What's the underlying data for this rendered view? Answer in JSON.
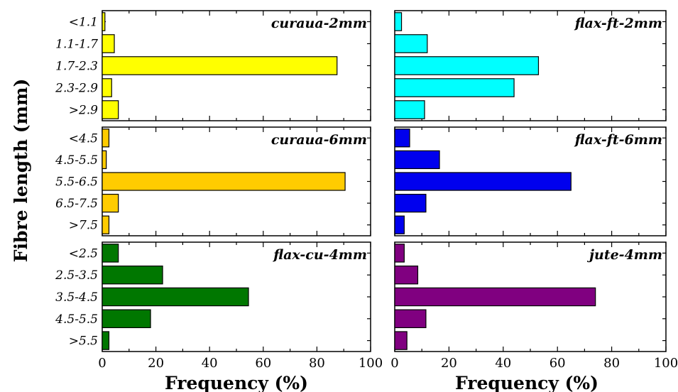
{
  "chart_data": {
    "type": "bar",
    "orientation": "horizontal",
    "xlabel": "Frequency (%)",
    "ylabel": "Fibre length (mm)",
    "xlim": [
      0,
      100
    ],
    "x_ticks": [
      0,
      20,
      40,
      60,
      80,
      100
    ],
    "panels": [
      {
        "title": "curaua-2mm",
        "color": "#ffff00",
        "categories": [
          "<1.1",
          "1.1-1.7",
          "1.7-2.3",
          "2.3-2.9",
          ">2.9"
        ],
        "values": [
          1,
          4.5,
          87.5,
          3.5,
          6
        ]
      },
      {
        "title": "flax-ft-2mm",
        "color": "#00ffff",
        "categories": [
          "",
          "",
          "",
          "",
          ""
        ],
        "values": [
          2.5,
          12,
          53,
          44,
          11
        ]
      },
      {
        "title": "curaua-6mm",
        "color": "#ffcc00",
        "categories": [
          "<4.5",
          "4.5-5.5",
          "5.5-6.5",
          "6.5-7.5",
          ">7.5"
        ],
        "values": [
          2.5,
          1.5,
          90.5,
          6,
          2.5
        ]
      },
      {
        "title": "flax-ft-6mm",
        "color": "#0000ee",
        "categories": [
          "",
          "",
          "",
          "",
          ""
        ],
        "values": [
          5.5,
          16.5,
          65,
          11.5,
          3.5
        ]
      },
      {
        "title": "flax-cu-4mm",
        "color": "#007700",
        "categories": [
          "<2.5",
          "2.5-3.5",
          "3.5-4.5",
          "4.5-5.5",
          ">5.5"
        ],
        "values": [
          6,
          22.5,
          54.5,
          18,
          2.5
        ]
      },
      {
        "title": "jute-4mm",
        "color": "#800080",
        "categories": [
          "",
          "",
          "",
          "",
          ""
        ],
        "values": [
          3.5,
          8.5,
          74,
          11.5,
          4.5
        ]
      }
    ]
  }
}
